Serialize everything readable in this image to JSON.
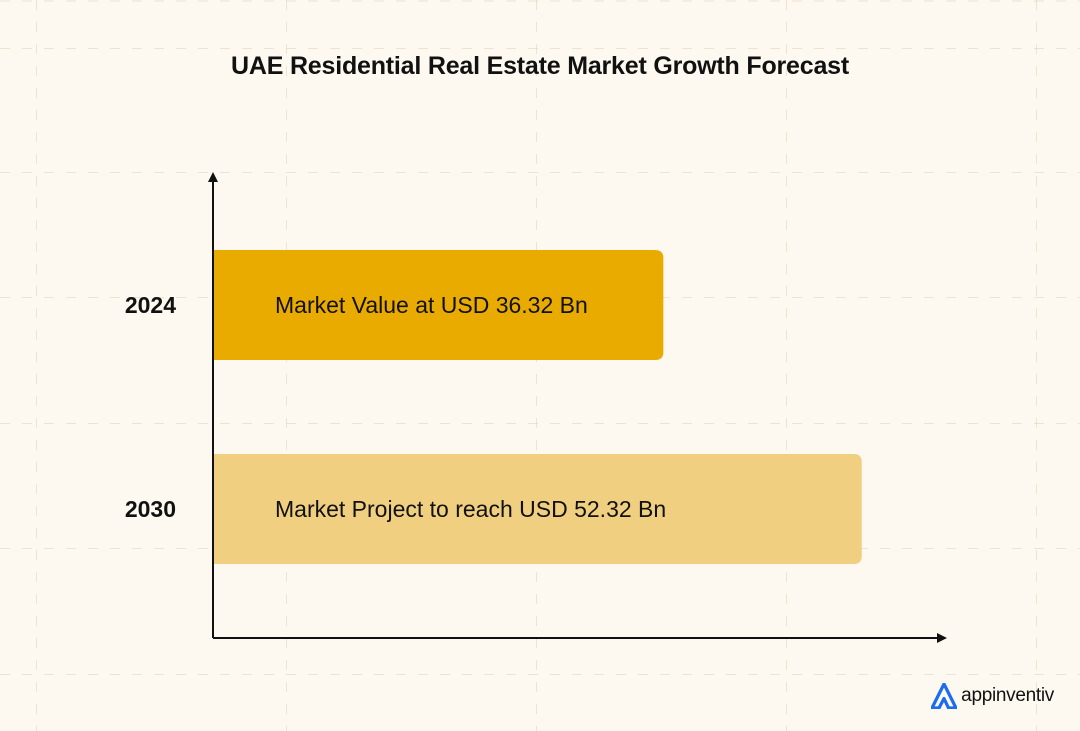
{
  "chart_data": {
    "type": "bar",
    "orientation": "horizontal",
    "title": "UAE Residential Real Estate Market Growth Forecast",
    "categories": [
      "2024",
      "2030"
    ],
    "values": [
      36.32,
      52.32
    ],
    "unit": "USD Bn",
    "bar_labels": [
      "Market Value at USD 36.32 Bn",
      "Market Project to reach USD 52.32 Bn"
    ],
    "bar_colors": [
      "#eaab00",
      "#f0d080"
    ],
    "xlabel": "",
    "ylabel": "",
    "grid": false,
    "legend": "none"
  },
  "brand": {
    "name": "appinventiv",
    "logo_icon": "appinventiv-logo-icon",
    "logo_color": "#1a6cf0"
  },
  "colors": {
    "background": "#fdf9f0",
    "axis": "#111111",
    "text": "#111111"
  }
}
